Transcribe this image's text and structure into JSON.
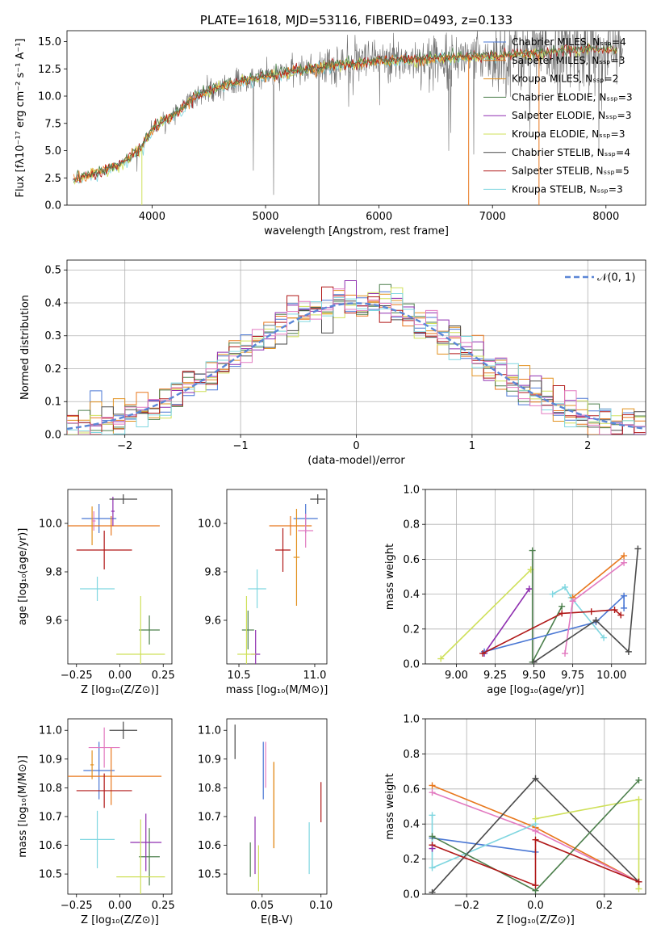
{
  "colors": {
    "chabrier_miles": "#4a77d4",
    "salpeter_miles": "#e8781e",
    "kroupa_miles": "#e2911f",
    "chabrier_elodie": "#4c7f4c",
    "salpeter_elodie": "#8f2fb0",
    "kroupa_elodie": "#cfe05a",
    "chabrier_stelib": "#4a4a4a",
    "salpeter_stelib": "#b01818",
    "kroupa_stelib": "#7fd6e0",
    "pink": "#e27ac0",
    "normal": "#5b86d6",
    "grid": "#b0b0b0"
  },
  "chart_data": [
    {
      "id": "spectrum",
      "type": "line",
      "title": "PLATE=1618, MJD=53116, FIBERID=0493, z=0.133",
      "xlabel": "wavelength [Angstrom, rest frame]",
      "ylabel": "Flux [fλ10⁻¹⁷ erg cm⁻² s⁻¹ A⁻¹]",
      "xlim": [
        3250,
        8350
      ],
      "ylim": [
        0,
        16
      ],
      "xticks": [
        "4000",
        "5000",
        "6000",
        "7000",
        "8000"
      ],
      "yticks": [
        "0.0",
        "2.5",
        "5.0",
        "7.5",
        "10.0",
        "12.5",
        "15.0"
      ],
      "legend": [
        {
          "label": "Chabrier MILES, Nₛₛₚ=4",
          "color": "chabrier_miles"
        },
        {
          "label": "Salpeter MILES, Nₛₛₚ=3",
          "color": "salpeter_miles"
        },
        {
          "label": "Kroupa MILES, Nₛₛₚ=2",
          "color": "kroupa_miles"
        },
        {
          "label": "Chabrier ELODIE, Nₛₛₚ=3",
          "color": "chabrier_elodie"
        },
        {
          "label": "Salpeter ELODIE, Nₛₛₚ=3",
          "color": "salpeter_elodie"
        },
        {
          "label": "Kroupa ELODIE, Nₛₛₚ=3",
          "color": "kroupa_elodie"
        },
        {
          "label": "Chabrier STELIB, Nₛₛₚ=4",
          "color": "chabrier_stelib"
        },
        {
          "label": "Salpeter STELIB, Nₛₛₚ=5",
          "color": "salpeter_stelib"
        },
        {
          "label": "Kroupa STELIB, Nₛₛₚ=3",
          "color": "kroupa_stelib"
        }
      ],
      "continuum": [
        [
          3300,
          2.3
        ],
        [
          3500,
          2.9
        ],
        [
          3700,
          3.6
        ],
        [
          3900,
          5.2
        ],
        [
          4000,
          7.0
        ],
        [
          4200,
          8.3
        ],
        [
          4400,
          10.1
        ],
        [
          4600,
          10.8
        ],
        [
          4800,
          11.4
        ],
        [
          5000,
          11.8
        ],
        [
          5200,
          12.2
        ],
        [
          5400,
          12.5
        ],
        [
          5600,
          12.8
        ],
        [
          5800,
          13.0
        ],
        [
          6000,
          13.2
        ],
        [
          6200,
          13.3
        ],
        [
          6400,
          13.4
        ],
        [
          6600,
          13.5
        ],
        [
          6800,
          13.6
        ],
        [
          7000,
          13.7
        ],
        [
          7200,
          13.8
        ],
        [
          7400,
          13.9
        ],
        [
          7600,
          14.1
        ],
        [
          8000,
          14.3
        ],
        [
          8150,
          14.0
        ]
      ],
      "grid": false
    },
    {
      "id": "residuals",
      "type": "histogram",
      "xlabel": "(data-model)/error",
      "ylabel": "Normed distribution",
      "xlim": [
        -2.5,
        2.5
      ],
      "ylim": [
        0,
        0.53
      ],
      "xticks": [
        "−2",
        "−1",
        "0",
        "1",
        "2"
      ],
      "yticks": [
        "0.0",
        "0.1",
        "0.2",
        "0.3",
        "0.4",
        "0.5"
      ],
      "legend": [
        {
          "label": "𝒩(0, 1)",
          "color": "normal"
        }
      ],
      "bin_width": 0.1,
      "grid": true
    },
    {
      "id": "age_vs_Z",
      "type": "errorbar",
      "xlabel": "Z [log₁₀(Z/Z⊙)]",
      "ylabel": "age  [log₁₀(age/yr)]",
      "xlim": [
        -0.3,
        0.3
      ],
      "ylim": [
        9.42,
        10.14
      ],
      "xticks": [
        "−0.25",
        "0.00",
        "0.25"
      ],
      "yticks": [
        "9.6",
        "9.8",
        "10.0"
      ],
      "points": [
        {
          "c": "chabrier_miles",
          "x": -0.12,
          "xe": 0.1,
          "y": 10.02,
          "ye": 0.06
        },
        {
          "c": "salpeter_miles",
          "x": -0.05,
          "xe": 0.28,
          "y": 9.99,
          "ye": 0.04
        },
        {
          "c": "kroupa_miles",
          "x": -0.16,
          "xe": 0.01,
          "y": 9.99,
          "ye": 0.08
        },
        {
          "c": "chabrier_elodie",
          "x": 0.17,
          "xe": 0.06,
          "y": 9.56,
          "ye": 0.06
        },
        {
          "c": "salpeter_elodie",
          "x": -0.04,
          "xe": 0.01,
          "y": 10.05,
          "ye": 0.06
        },
        {
          "c": "kroupa_elodie",
          "x": 0.12,
          "xe": 0.14,
          "y": 9.46,
          "ye": 0.24
        },
        {
          "c": "chabrier_stelib",
          "x": 0.02,
          "xe": 0.08,
          "y": 10.1,
          "ye": 0.02
        },
        {
          "c": "salpeter_stelib",
          "x": -0.09,
          "xe": 0.16,
          "y": 9.89,
          "ye": 0.08
        },
        {
          "c": "kroupa_stelib",
          "x": -0.13,
          "xe": 0.1,
          "y": 9.73,
          "ye": 0.05
        },
        {
          "c": "pink",
          "x": -0.15,
          "xe": 0.01,
          "y": 10.01,
          "ye": 0.04
        }
      ]
    },
    {
      "id": "age_vs_mass",
      "type": "errorbar",
      "xlabel": "mass [log₁₀(M/M⊙)]",
      "ylabel": "",
      "xlim": [
        10.42,
        11.08
      ],
      "ylim": [
        9.42,
        10.14
      ],
      "xticks": [
        "10.5",
        "11.0"
      ],
      "yticks": [
        "9.6",
        "9.8",
        "10.0"
      ],
      "points": [
        {
          "c": "chabrier_miles",
          "x": 10.94,
          "xe": 0.08,
          "y": 10.02,
          "ye": 0.06
        },
        {
          "c": "salpeter_miles",
          "x": 10.84,
          "xe": 0.14,
          "y": 9.99,
          "ye": 0.04
        },
        {
          "c": "kroupa_miles",
          "x": 10.88,
          "xe": 0.02,
          "y": 9.86,
          "ye": 0.2
        },
        {
          "c": "chabrier_elodie",
          "x": 10.56,
          "xe": 0.04,
          "y": 9.56,
          "ye": 0.08
        },
        {
          "c": "salpeter_elodie",
          "x": 10.61,
          "xe": 0.03,
          "y": 9.46,
          "ye": 0.1
        },
        {
          "c": "kroupa_elodie",
          "x": 10.55,
          "xe": 0.06,
          "y": 9.46,
          "ye": 0.24
        },
        {
          "c": "chabrier_stelib",
          "x": 11.02,
          "xe": 0.05,
          "y": 10.1,
          "ye": 0.02
        },
        {
          "c": "salpeter_stelib",
          "x": 10.79,
          "xe": 0.05,
          "y": 9.89,
          "ye": 0.09
        },
        {
          "c": "kroupa_stelib",
          "x": 10.62,
          "xe": 0.06,
          "y": 9.73,
          "ye": 0.08
        },
        {
          "c": "pink",
          "x": 10.94,
          "xe": 0.05,
          "y": 9.97,
          "ye": 0.07
        }
      ]
    },
    {
      "id": "weight_vs_age",
      "type": "line",
      "xlabel": "age  [log₁₀(age/yr)]",
      "ylabel": "mass weight",
      "xlim": [
        8.8,
        10.22
      ],
      "ylim": [
        0,
        1
      ],
      "xticks": [
        "9.00",
        "9.25",
        "9.50",
        "9.75",
        "10.00"
      ],
      "yticks": [
        "0.0",
        "0.2",
        "0.4",
        "0.6",
        "0.8",
        "1.0"
      ],
      "grid": true,
      "series": [
        {
          "c": "kroupa_elodie",
          "x": [
            8.9,
            9.48,
            9.48
          ],
          "y": [
            0.03,
            0.54,
            0.54
          ]
        },
        {
          "c": "salpeter_elodie",
          "x": [
            9.18,
            9.47,
            9.47
          ],
          "y": [
            0.06,
            0.43,
            0.43
          ]
        },
        {
          "c": "chabrier_elodie",
          "x": [
            9.49,
            9.49,
            9.68
          ],
          "y": [
            0.65,
            0.01,
            0.33
          ]
        },
        {
          "c": "kroupa_stelib",
          "x": [
            9.62,
            9.7,
            9.74,
            9.95
          ],
          "y": [
            0.4,
            0.44,
            0.38,
            0.15
          ]
        },
        {
          "c": "chabrier_miles",
          "x": [
            9.18,
            9.9,
            10.08,
            10.08
          ],
          "y": [
            0.07,
            0.24,
            0.39,
            0.32
          ]
        },
        {
          "c": "salpeter_stelib",
          "x": [
            9.17,
            9.68,
            9.87,
            10.02,
            10.06
          ],
          "y": [
            0.06,
            0.29,
            0.3,
            0.31,
            0.28
          ]
        },
        {
          "c": "salpeter_miles",
          "x": [
            9.75,
            10.08
          ],
          "y": [
            0.38,
            0.62
          ]
        },
        {
          "c": "pink",
          "x": [
            9.7,
            9.75,
            10.08
          ],
          "y": [
            0.06,
            0.36,
            0.58
          ]
        },
        {
          "c": "chabrier_stelib",
          "x": [
            9.5,
            9.9,
            10.11,
            10.17
          ],
          "y": [
            0.01,
            0.25,
            0.07,
            0.66
          ]
        }
      ]
    },
    {
      "id": "mass_vs_Z",
      "type": "errorbar",
      "xlabel": "Z [log₁₀(Z/Z⊙)]",
      "ylabel": "mass [log₁₀(M/M⊙)]",
      "xlim": [
        -0.3,
        0.3
      ],
      "ylim": [
        10.43,
        11.04
      ],
      "xticks": [
        "−0.25",
        "0.00",
        "0.25"
      ],
      "yticks": [
        "10.5",
        "10.6",
        "10.7",
        "10.8",
        "10.9",
        "11.0"
      ],
      "points": [
        {
          "c": "chabrier_miles",
          "x": -0.12,
          "xe": 0.09,
          "y": 10.86,
          "ye": 0.1
        },
        {
          "c": "salpeter_miles",
          "x": -0.05,
          "xe": 0.29,
          "y": 10.84,
          "ye": 0.1
        },
        {
          "c": "kroupa_miles",
          "x": -0.16,
          "xe": 0.01,
          "y": 10.88,
          "ye": 0.05
        },
        {
          "c": "chabrier_elodie",
          "x": 0.17,
          "xe": 0.06,
          "y": 10.56,
          "ye": 0.1
        },
        {
          "c": "salpeter_elodie",
          "x": 0.15,
          "xe": 0.09,
          "y": 10.61,
          "ye": 0.1
        },
        {
          "c": "kroupa_elodie",
          "x": 0.12,
          "xe": 0.14,
          "y": 10.49,
          "ye": 0.2
        },
        {
          "c": "chabrier_stelib",
          "x": 0.02,
          "xe": 0.08,
          "y": 11.0,
          "ye": 0.03
        },
        {
          "c": "salpeter_stelib",
          "x": -0.09,
          "xe": 0.16,
          "y": 10.79,
          "ye": 0.06
        },
        {
          "c": "kroupa_stelib",
          "x": -0.13,
          "xe": 0.1,
          "y": 10.62,
          "ye": 0.1
        },
        {
          "c": "pink",
          "x": -0.09,
          "xe": 0.09,
          "y": 10.94,
          "ye": 0.07
        }
      ]
    },
    {
      "id": "mass_vs_ebv",
      "type": "errorbar",
      "xlabel": "E(B-V)",
      "ylabel": "",
      "xlim": [
        0.02,
        0.105
      ],
      "ylim": [
        10.43,
        11.04
      ],
      "xticks": [
        "0.05",
        "0.10"
      ],
      "yticks": [
        "10.5",
        "10.6",
        "10.7",
        "10.8",
        "10.9",
        "11.0"
      ],
      "points": [
        {
          "c": "chabrier_miles",
          "x": 0.051,
          "xe": 0,
          "y": 10.86,
          "ye": 0.1
        },
        {
          "c": "salpeter_miles",
          "x": 0.06,
          "xe": 0,
          "y": 10.74,
          "ye": 0.15
        },
        {
          "c": "kroupa_miles",
          "x": 0.06,
          "xe": 0,
          "y": 10.74,
          "ye": 0.15
        },
        {
          "c": "chabrier_elodie",
          "x": 0.04,
          "xe": 0,
          "y": 10.55,
          "ye": 0.06
        },
        {
          "c": "salpeter_elodie",
          "x": 0.044,
          "xe": 0,
          "y": 10.6,
          "ye": 0.1
        },
        {
          "c": "kroupa_elodie",
          "x": 0.047,
          "xe": 0,
          "y": 10.52,
          "ye": 0.08
        },
        {
          "c": "chabrier_stelib",
          "x": 0.027,
          "xe": 0,
          "y": 10.96,
          "ye": 0.06
        },
        {
          "c": "salpeter_stelib",
          "x": 0.1,
          "xe": 0,
          "y": 10.75,
          "ye": 0.07
        },
        {
          "c": "kroupa_stelib",
          "x": 0.09,
          "xe": 0,
          "y": 10.59,
          "ye": 0.09
        },
        {
          "c": "pink",
          "x": 0.053,
          "xe": 0,
          "y": 10.88,
          "ye": 0.08
        }
      ]
    },
    {
      "id": "weight_vs_Z",
      "type": "line",
      "xlabel": "Z [log₁₀(Z/Z⊙)]",
      "ylabel": "mass weight",
      "xlim": [
        -0.32,
        0.32
      ],
      "ylim": [
        0,
        1
      ],
      "xticks": [
        "−0.2",
        "0.0",
        "0.2"
      ],
      "yticks": [
        "0.0",
        "0.2",
        "0.4",
        "0.6",
        "0.8",
        "1.0"
      ],
      "grid": true,
      "series": [
        {
          "c": "salpeter_miles",
          "x": [
            -0.3,
            0.0,
            0.3
          ],
          "y": [
            0.62,
            0.38,
            0.07
          ]
        },
        {
          "c": "pink",
          "x": [
            -0.3,
            0.0,
            0.3
          ],
          "y": [
            0.58,
            0.36,
            0.07
          ]
        },
        {
          "c": "chabrier_miles",
          "x": [
            -0.3,
            0.0
          ],
          "y": [
            0.32,
            0.24
          ]
        },
        {
          "c": "kroupa_stelib",
          "x": [
            -0.3,
            -0.3,
            0.0
          ],
          "y": [
            0.45,
            0.15,
            0.4
          ]
        },
        {
          "c": "chabrier_stelib",
          "x": [
            -0.3,
            0.0,
            0.3
          ],
          "y": [
            0.01,
            0.66,
            0.07
          ]
        },
        {
          "c": "kroupa_elodie",
          "x": [
            0.0,
            0.3,
            0.3
          ],
          "y": [
            0.43,
            0.54,
            0.03
          ]
        },
        {
          "c": "chabrier_elodie",
          "x": [
            -0.3,
            0.0,
            0.3
          ],
          "y": [
            0.33,
            0.02,
            0.65
          ]
        },
        {
          "c": "salpeter_stelib",
          "x": [
            -0.3,
            0.0,
            0.0,
            0.3
          ],
          "y": [
            0.28,
            0.05,
            0.31,
            0.07
          ]
        },
        {
          "c": "salpeter_elodie",
          "x": [
            -0.3
          ],
          "y": [
            0.26
          ]
        }
      ]
    }
  ]
}
